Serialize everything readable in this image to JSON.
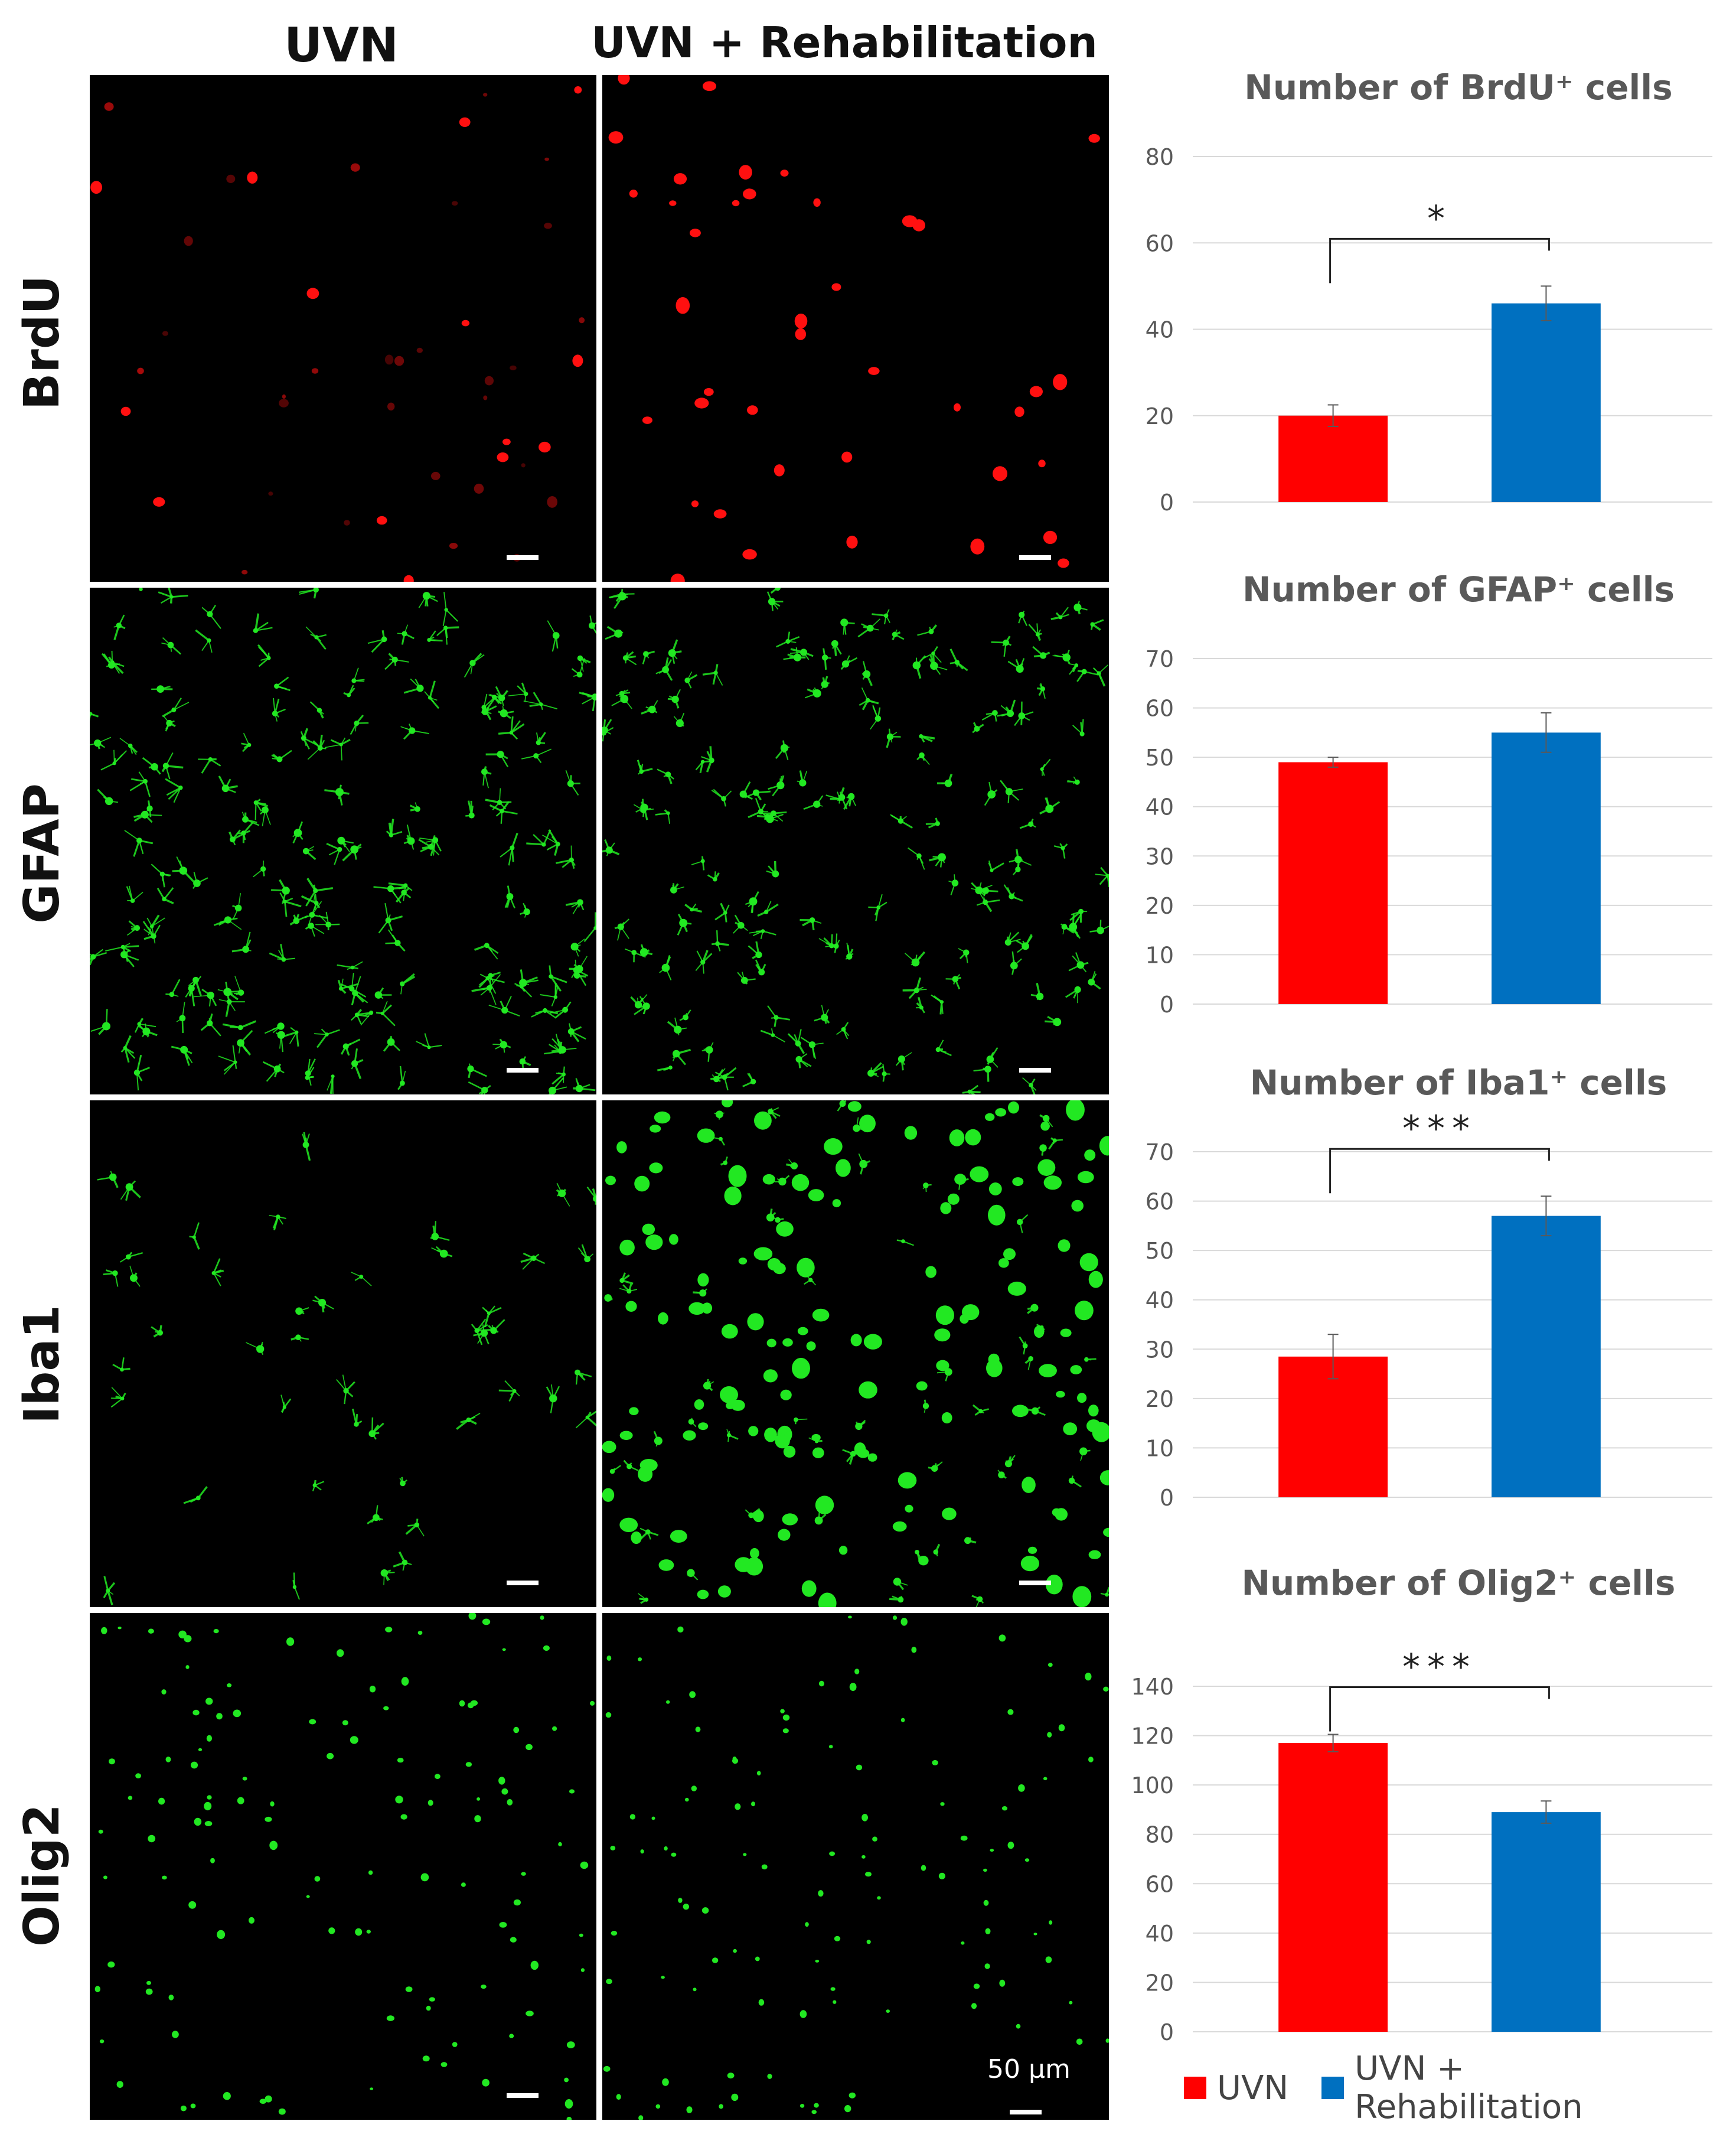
{
  "columns": [
    "UVN",
    "UVN + Rehabilitation"
  ],
  "rows": [
    "BrdU",
    "GFAP",
    "Iba1",
    "Olig2"
  ],
  "scale_label": "50 µm",
  "colors": {
    "uvn": "#ff0000",
    "rehab": "#0070c0",
    "red_stain": "#ff1010",
    "green_stain": "#22e822"
  },
  "legend": [
    {
      "label": "UVN",
      "color": "#ff0000"
    },
    {
      "label": "UVN + Rehabilitation",
      "color": "#0070c0"
    }
  ],
  "chart_data": [
    {
      "type": "bar",
      "title": "Number of BrdU⁺ cells",
      "categories": [
        "UVN",
        "UVN + Rehabilitation"
      ],
      "values": [
        20,
        46
      ],
      "errors": [
        2.5,
        4
      ],
      "ylim": [
        0,
        80
      ],
      "yticks": [
        0,
        20,
        40,
        60,
        80
      ],
      "significance": "*",
      "grid": true
    },
    {
      "type": "bar",
      "title": "Number of GFAP⁺ cells",
      "categories": [
        "UVN",
        "UVN + Rehabilitation"
      ],
      "values": [
        49,
        55
      ],
      "errors": [
        1,
        4
      ],
      "ylim": [
        0,
        70
      ],
      "yticks": [
        0,
        10,
        20,
        30,
        40,
        50,
        60,
        70
      ],
      "significance": "",
      "grid": true
    },
    {
      "type": "bar",
      "title": "Number of Iba1⁺ cells",
      "categories": [
        "UVN",
        "UVN + Rehabilitation"
      ],
      "values": [
        28.5,
        57
      ],
      "errors": [
        4.5,
        4
      ],
      "ylim": [
        0,
        70
      ],
      "yticks": [
        0,
        10,
        20,
        30,
        40,
        50,
        60,
        70
      ],
      "significance": "***",
      "grid": true
    },
    {
      "type": "bar",
      "title": "Number of Olig2⁺ cells",
      "categories": [
        "UVN",
        "UVN + Rehabilitation"
      ],
      "values": [
        117,
        89
      ],
      "errors": [
        3.5,
        4.5
      ],
      "ylim": [
        0,
        140
      ],
      "yticks": [
        0,
        20,
        40,
        60,
        80,
        100,
        120,
        140
      ],
      "significance": "***",
      "grid": true
    }
  ]
}
